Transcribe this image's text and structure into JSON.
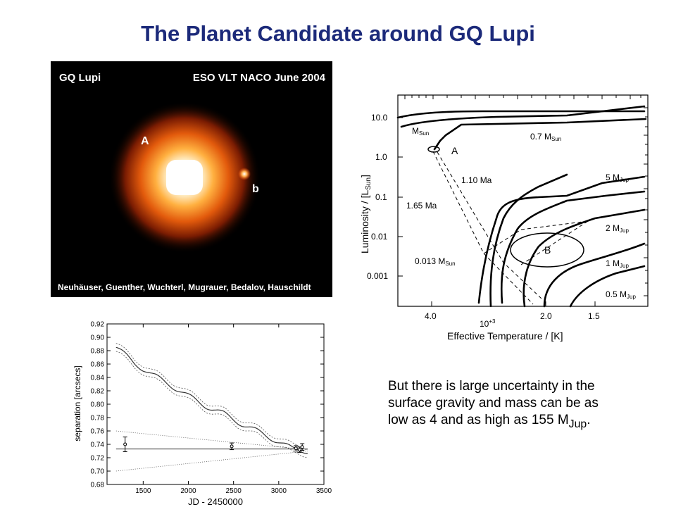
{
  "slide": {
    "title": "The Planet Candidate around GQ Lupi",
    "note": {
      "text_before": "But there is large uncertainty in the surface gravity and mass can be as low as 4 and as high as 155 M",
      "subscript": "Jup",
      "text_after": "."
    }
  },
  "image_panel": {
    "object_label": "GQ Lupi",
    "instrument_label": "ESO VLT NACO June 2004",
    "star_label": "A",
    "companion_label": "b",
    "credits": "Neuhäuser, Guenther, Wuchterl, Mugrauer, Bedalov, Hauschildt"
  },
  "hr_diagram": {
    "y_axis_label_main": "Luminosity / [L",
    "y_axis_label_sub": "Sun",
    "y_axis_label_end": "]",
    "x_axis_label": "Effective Temperature / [K]",
    "x_exponent": "10",
    "x_exponent_power": "+3",
    "y_ticks": [
      "10.0",
      "1.0",
      "0.1",
      "0.01",
      "0.001"
    ],
    "x_ticks": [
      "4.0",
      "2.0",
      "1.5"
    ],
    "labels": {
      "m_sun": "M",
      "m_sun_sub": "Sun",
      "point_a": "A",
      "point_b": "B",
      "mass_07": "0.7 M",
      "mass_07_sub": "Sun",
      "age_110": "1.10 Ma",
      "age_165": "1.65 Ma",
      "mass_5jup": "5 M",
      "mass_5jup_sub": "Jup",
      "mass_2jup": "2 M",
      "mass_2jup_sub": "Jup",
      "mass_0013": "0.013 M",
      "mass_0013_sub": "Sun",
      "mass_1jup": "1 M",
      "mass_1jup_sub": "Jup",
      "mass_05jup": "0.5 M",
      "mass_05jup_sub": "Jup"
    }
  },
  "chart_data": {
    "type": "line",
    "xlabel": "JD - 2450000",
    "ylabel": "separation [arcsecs]",
    "xlim": [
      1100,
      3500
    ],
    "ylim": [
      0.68,
      0.92
    ],
    "x_ticks": [
      1500,
      2000,
      2500,
      3000,
      3500
    ],
    "y_ticks": [
      0.68,
      0.7,
      0.72,
      0.74,
      0.76,
      0.78,
      0.8,
      0.82,
      0.84,
      0.86,
      0.88,
      0.9,
      0.92
    ],
    "measurements": [
      {
        "x": 1300,
        "y": 0.74,
        "err": 0.011
      },
      {
        "x": 2480,
        "y": 0.737,
        "err": 0.005
      },
      {
        "x": 3190,
        "y": 0.734,
        "err": 0.004
      },
      {
        "x": 3230,
        "y": 0.732,
        "err": 0.004
      },
      {
        "x": 3260,
        "y": 0.736,
        "err": 0.005
      }
    ],
    "orbital_motion_model": {
      "x": [
        1200,
        1400,
        1600,
        1800,
        2000,
        2200,
        2400,
        2600,
        2800,
        3000,
        3150,
        3320
      ],
      "y": [
        0.885,
        0.862,
        0.844,
        0.829,
        0.812,
        0.797,
        0.785,
        0.77,
        0.757,
        0.744,
        0.733,
        0.73
      ]
    },
    "constant_fit": {
      "x": [
        1200,
        3320
      ],
      "y": [
        0.733,
        0.733
      ]
    },
    "envelope_upper": {
      "x": [
        1200,
        3320
      ],
      "y": [
        0.76,
        0.732
      ]
    },
    "envelope_lower": {
      "x": [
        1200,
        3320
      ],
      "y": [
        0.7,
        0.73
      ]
    }
  }
}
